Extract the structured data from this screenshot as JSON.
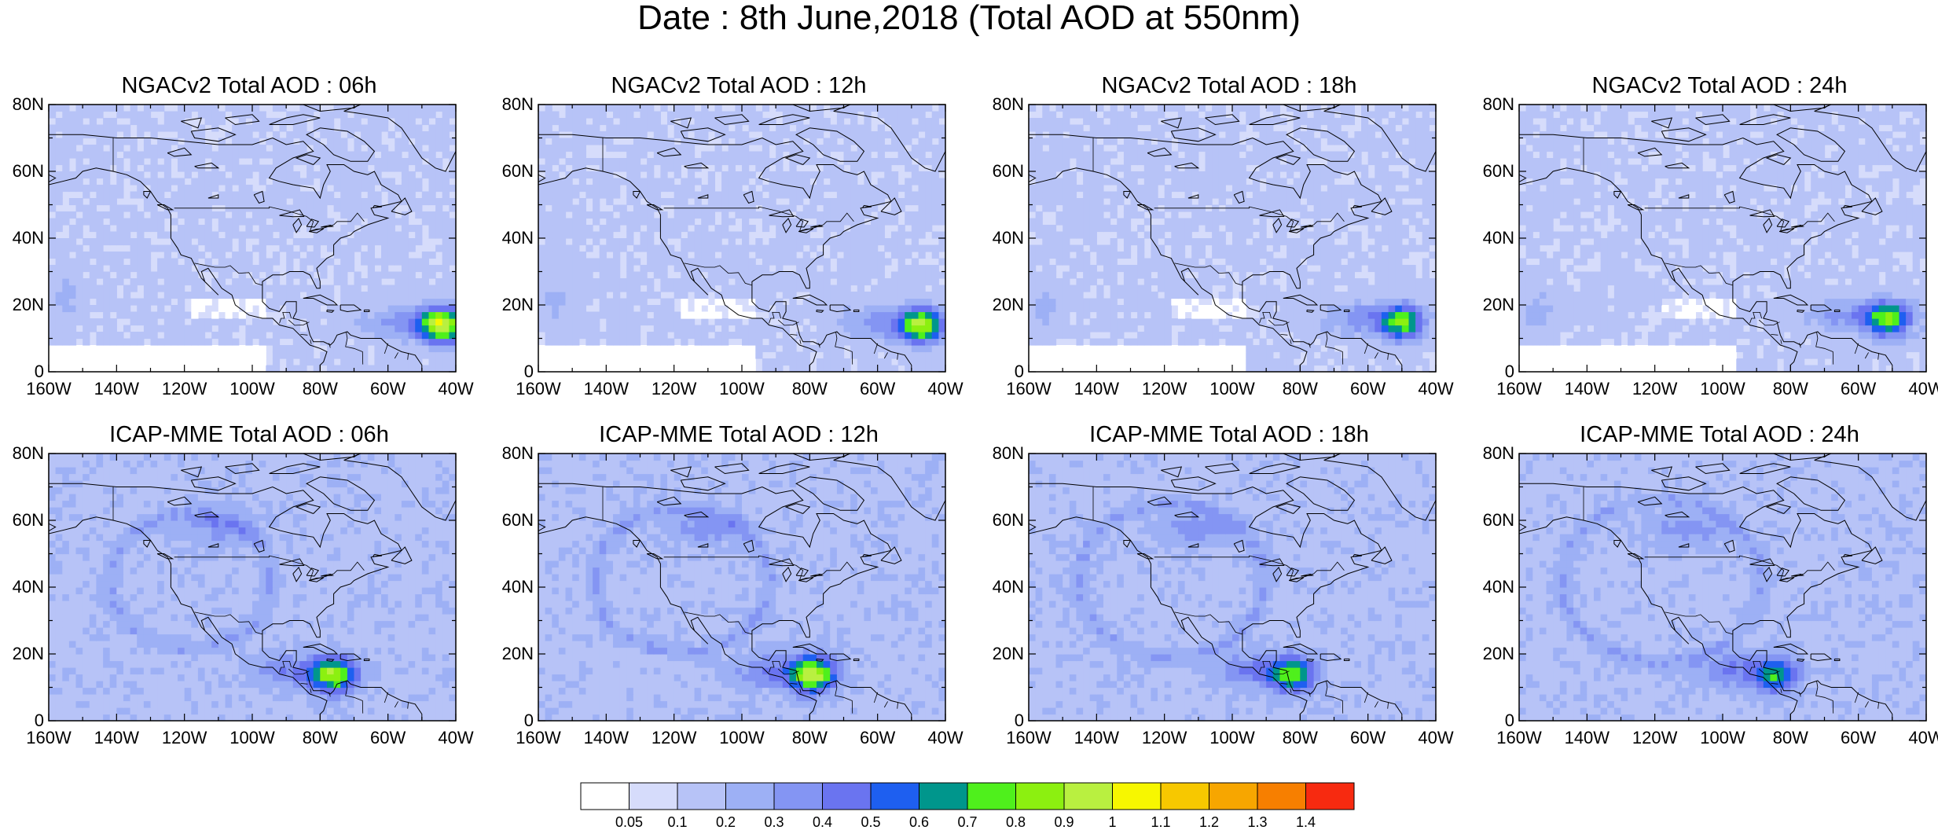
{
  "figure": {
    "title": "Date : 8th June,2018 (Total AOD at 550nm)"
  },
  "map": {
    "lat_labels": [
      "80N",
      "60N",
      "40N",
      "20N",
      "0"
    ],
    "lon_labels": [
      "160W",
      "140W",
      "120W",
      "100W",
      "80W",
      "60W",
      "40W"
    ],
    "extent": {
      "lon": [
        -160,
        -40
      ],
      "lat": [
        0,
        80
      ]
    }
  },
  "panels": [
    {
      "model": "NGACv2",
      "lead": "06h",
      "title": "NGACv2 Total AOD : 06h",
      "hotspot_aod": 0.85,
      "hotspot_lon": -44,
      "hotspot_lat": 14
    },
    {
      "model": "NGACv2",
      "lead": "12h",
      "title": "NGACv2 Total AOD : 12h",
      "hotspot_aod": 0.75,
      "hotspot_lon": -47,
      "hotspot_lat": 14
    },
    {
      "model": "NGACv2",
      "lead": "18h",
      "title": "NGACv2 Total AOD : 18h",
      "hotspot_aod": 0.65,
      "hotspot_lon": -50,
      "hotspot_lat": 15
    },
    {
      "model": "NGACv2",
      "lead": "24h",
      "title": "NGACv2 Total AOD : 24h",
      "hotspot_aod": 0.65,
      "hotspot_lon": -51,
      "hotspot_lat": 16
    },
    {
      "model": "ICAP-MME",
      "lead": "06h",
      "title": "ICAP-MME Total AOD : 06h",
      "hotspot_aod": 0.65,
      "hotspot_lon": -76,
      "hotspot_lat": 14
    },
    {
      "model": "ICAP-MME",
      "lead": "12h",
      "title": "ICAP-MME Total AOD : 12h",
      "hotspot_aod": 0.75,
      "hotspot_lon": -79,
      "hotspot_lat": 14
    },
    {
      "model": "ICAP-MME",
      "lead": "18h",
      "title": "ICAP-MME Total AOD : 18h",
      "hotspot_aod": 0.55,
      "hotspot_lon": -82,
      "hotspot_lat": 14
    },
    {
      "model": "ICAP-MME",
      "lead": "24h",
      "title": "ICAP-MME Total AOD : 24h",
      "hotspot_aod": 0.45,
      "hotspot_lon": -84,
      "hotspot_lat": 14
    }
  ],
  "colorbar": {
    "levels": [
      "0.05",
      "0.1",
      "0.2",
      "0.3",
      "0.4",
      "0.5",
      "0.6",
      "0.7",
      "0.8",
      "0.9",
      "1",
      "1.1",
      "1.2",
      "1.3",
      "1.4"
    ],
    "colors": [
      "#ffffff",
      "#d6dcfb",
      "#b7c3f7",
      "#9db0f5",
      "#8495f3",
      "#6a74f0",
      "#1e5ff0",
      "#00968c",
      "#4ff01c",
      "#8cf010",
      "#b9f040",
      "#f7f700",
      "#f7c800",
      "#f7a600",
      "#f77f00",
      "#f72a10"
    ]
  }
}
